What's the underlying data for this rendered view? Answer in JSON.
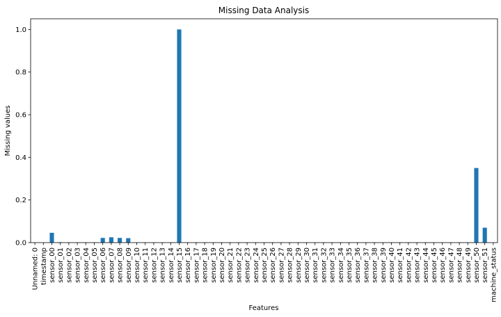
{
  "chart_data": {
    "type": "bar",
    "title": "Missing Data Analysis",
    "xlabel": "Features",
    "ylabel": "Missing values",
    "ylim": [
      0,
      1.05
    ],
    "yticks": [
      "0.0",
      "0.2",
      "0.4",
      "0.6",
      "0.8",
      "1.0"
    ],
    "grid": false,
    "bar_color": "#1f77b4",
    "categories": [
      "Unnamed: 0",
      "timestamp",
      "sensor_00",
      "sensor_01",
      "sensor_02",
      "sensor_03",
      "sensor_04",
      "sensor_05",
      "sensor_06",
      "sensor_07",
      "sensor_08",
      "sensor_09",
      "sensor_10",
      "sensor_11",
      "sensor_12",
      "sensor_13",
      "sensor_14",
      "sensor_15",
      "sensor_16",
      "sensor_17",
      "sensor_18",
      "sensor_19",
      "sensor_20",
      "sensor_21",
      "sensor_22",
      "sensor_23",
      "sensor_24",
      "sensor_25",
      "sensor_26",
      "sensor_27",
      "sensor_28",
      "sensor_29",
      "sensor_30",
      "sensor_31",
      "sensor_32",
      "sensor_33",
      "sensor_34",
      "sensor_35",
      "sensor_36",
      "sensor_37",
      "sensor_38",
      "sensor_39",
      "sensor_40",
      "sensor_41",
      "sensor_42",
      "sensor_43",
      "sensor_44",
      "sensor_45",
      "sensor_46",
      "sensor_47",
      "sensor_48",
      "sensor_49",
      "sensor_50",
      "sensor_51",
      "machine_status"
    ],
    "values": [
      0,
      0,
      0.046,
      0.002,
      0.001,
      0.001,
      0.001,
      0.001,
      0.022,
      0.025,
      0.022,
      0.021,
      0.001,
      0.001,
      0.001,
      0.001,
      0.001,
      1.0,
      0.001,
      0.001,
      0.001,
      0.001,
      0.001,
      0.001,
      0.001,
      0.001,
      0.001,
      0.001,
      0.001,
      0.001,
      0.001,
      0.001,
      0.001,
      0.001,
      0.001,
      0.001,
      0.001,
      0.001,
      0.001,
      0.001,
      0.001,
      0.001,
      0.001,
      0.001,
      0.001,
      0.001,
      0.001,
      0.001,
      0.001,
      0.001,
      0.001,
      0.001,
      0.35,
      0.07,
      0
    ]
  }
}
